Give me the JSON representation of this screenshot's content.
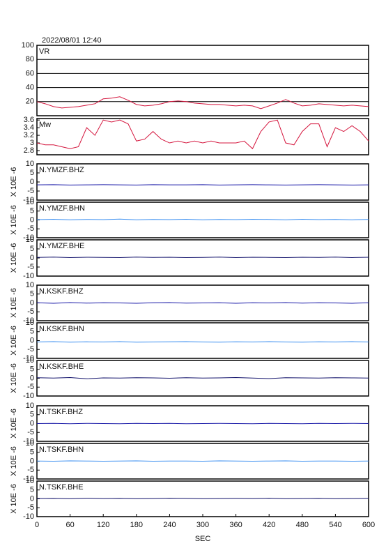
{
  "chart_data": [
    {
      "type": "line",
      "title": "2022/08/01 12:40",
      "label": "VR",
      "color": "#d4143c",
      "grid": true,
      "xlim": [
        0,
        600
      ],
      "ylim": [
        0,
        100
      ],
      "yticks": [
        20,
        40,
        60,
        80,
        100
      ],
      "x": [
        0,
        15,
        30,
        45,
        60,
        75,
        90,
        105,
        120,
        135,
        150,
        165,
        180,
        195,
        210,
        225,
        240,
        255,
        270,
        285,
        300,
        315,
        330,
        345,
        360,
        375,
        390,
        405,
        420,
        435,
        450,
        465,
        480,
        495,
        510,
        525,
        540,
        555,
        570,
        585,
        600
      ],
      "values": [
        20,
        17,
        13,
        11,
        12,
        13,
        15,
        17,
        24,
        25,
        27,
        22,
        16,
        14,
        15,
        17,
        20,
        21,
        20,
        18,
        17,
        16,
        16,
        15,
        14,
        15,
        14,
        10,
        14,
        18,
        23,
        18,
        14,
        15,
        17,
        16,
        15,
        14,
        15,
        14,
        13
      ]
    },
    {
      "type": "line",
      "label": "Mw",
      "color": "#d4143c",
      "grid": false,
      "xlim": [
        0,
        600
      ],
      "ylim": [
        2.69,
        3.64
      ],
      "yticks": [
        2.8,
        3.0,
        3.2,
        3.4,
        3.6
      ],
      "x": [
        0,
        15,
        30,
        45,
        60,
        75,
        90,
        105,
        120,
        135,
        150,
        165,
        180,
        195,
        210,
        225,
        240,
        255,
        270,
        285,
        300,
        315,
        330,
        345,
        360,
        375,
        390,
        405,
        420,
        435,
        450,
        465,
        480,
        495,
        510,
        525,
        540,
        555,
        570,
        585,
        600
      ],
      "values": [
        3.0,
        2.95,
        2.95,
        2.9,
        2.85,
        2.9,
        3.4,
        3.2,
        3.6,
        3.55,
        3.6,
        3.5,
        3.05,
        3.1,
        3.3,
        3.1,
        3.0,
        3.05,
        3.0,
        3.05,
        3.0,
        3.05,
        3.0,
        3.0,
        3.0,
        3.05,
        2.85,
        3.3,
        3.55,
        3.6,
        3.0,
        2.95,
        3.3,
        3.5,
        3.5,
        2.9,
        3.4,
        3.3,
        3.45,
        3.3,
        3.05
      ]
    },
    {
      "type": "line",
      "label": "N.YMZF.BHZ",
      "ylabel": "X 10E -6",
      "color": "#1a1aa8",
      "xlim": [
        0,
        600
      ],
      "ylim": [
        -10,
        10
      ],
      "yticks": [
        -10,
        -5,
        0,
        5,
        10
      ],
      "x": [
        0,
        30,
        60,
        90,
        120,
        150,
        180,
        210,
        240,
        270,
        300,
        330,
        360,
        390,
        420,
        450,
        480,
        510,
        540,
        570,
        600
      ],
      "values": [
        -1.6,
        -1.5,
        -1.7,
        -1.6,
        -1.5,
        -1.6,
        -1.7,
        -1.5,
        -1.6,
        -1.6,
        -1.5,
        -1.7,
        -1.6,
        -1.5,
        -1.6,
        -1.7,
        -1.6,
        -1.5,
        -1.6,
        -1.7,
        -1.6
      ]
    },
    {
      "type": "line",
      "label": "N.YMZF.BHN",
      "ylabel": "X 10E -6",
      "color": "#3a8ef0",
      "xlim": [
        0,
        600
      ],
      "ylim": [
        -10,
        10
      ],
      "yticks": [
        -10,
        -5,
        0,
        5,
        10
      ],
      "x": [
        0,
        30,
        60,
        90,
        120,
        150,
        180,
        210,
        240,
        270,
        300,
        330,
        360,
        390,
        420,
        450,
        480,
        510,
        540,
        570,
        600
      ],
      "values": [
        0.2,
        0.4,
        0.1,
        0.3,
        0.2,
        0.5,
        0.1,
        0.3,
        0.2,
        0.4,
        0.1,
        0.3,
        0.2,
        0.4,
        0.3,
        0.1,
        0.4,
        0.2,
        0.3,
        0.1,
        0.3
      ]
    },
    {
      "type": "line",
      "label": "N.YMZF.BHE",
      "ylabel": "X 10E -6",
      "color": "#10106a",
      "xlim": [
        0,
        600
      ],
      "ylim": [
        -10,
        10
      ],
      "yticks": [
        -10,
        -5,
        0,
        5,
        10
      ],
      "x": [
        0,
        30,
        60,
        90,
        120,
        150,
        180,
        210,
        240,
        270,
        300,
        330,
        360,
        390,
        420,
        450,
        480,
        510,
        540,
        570,
        600
      ],
      "values": [
        0.3,
        0.5,
        0.2,
        0.4,
        0.3,
        0.2,
        0.5,
        0.3,
        0.4,
        0.2,
        0.3,
        0.5,
        0.2,
        0.4,
        0.3,
        0.2,
        0.4,
        0.3,
        0.5,
        0.2,
        0.4
      ]
    },
    {
      "type": "line",
      "label": "N.KSKF.BHZ",
      "ylabel": "X 10E -6",
      "color": "#1a1aa8",
      "xlim": [
        0,
        600
      ],
      "ylim": [
        -10,
        10
      ],
      "yticks": [
        -10,
        -5,
        0,
        5,
        10
      ],
      "x": [
        0,
        30,
        60,
        90,
        120,
        150,
        180,
        210,
        240,
        270,
        300,
        330,
        360,
        390,
        420,
        450,
        480,
        510,
        540,
        570,
        600
      ],
      "values": [
        0.1,
        -0.2,
        0.2,
        -0.1,
        0.1,
        0.0,
        -0.2,
        0.1,
        0.2,
        -0.1,
        0.0,
        0.1,
        -0.2,
        0.1,
        0.0,
        0.2,
        -0.1,
        0.1,
        0.0,
        -0.2,
        0.1
      ]
    },
    {
      "type": "line",
      "label": "N.KSKF.BHN",
      "ylabel": "X 10E -6",
      "color": "#3a8ef0",
      "xlim": [
        0,
        600
      ],
      "ylim": [
        -10,
        10
      ],
      "yticks": [
        -10,
        -5,
        0,
        5,
        10
      ],
      "x": [
        0,
        30,
        60,
        90,
        120,
        150,
        180,
        210,
        240,
        270,
        300,
        330,
        360,
        390,
        420,
        450,
        480,
        510,
        540,
        570,
        600
      ],
      "values": [
        -0.8,
        -0.6,
        -0.9,
        -0.7,
        -0.8,
        -0.6,
        -0.9,
        -0.8,
        -0.7,
        -0.6,
        -0.8,
        -0.9,
        -0.7,
        -0.8,
        -0.6,
        -0.8,
        -0.9,
        -0.7,
        -0.8,
        -0.6,
        -0.8
      ]
    },
    {
      "type": "line",
      "label": "N.KSKF.BHE",
      "ylabel": "X 10E -6",
      "color": "#10106a",
      "xlim": [
        0,
        600
      ],
      "ylim": [
        -10,
        10
      ],
      "yticks": [
        -10,
        -5,
        0,
        5,
        10
      ],
      "x": [
        0,
        30,
        60,
        90,
        120,
        150,
        180,
        210,
        240,
        270,
        300,
        330,
        360,
        390,
        420,
        450,
        480,
        510,
        540,
        570,
        600
      ],
      "values": [
        0.3,
        0.1,
        0.4,
        -0.3,
        0.2,
        0.1,
        0.3,
        0.2,
        0.0,
        0.3,
        0.1,
        0.2,
        0.4,
        0.1,
        -0.2,
        0.3,
        0.2,
        0.1,
        0.3,
        0.2,
        0.1
      ]
    },
    {
      "type": "line",
      "label": "N.TSKF.BHZ",
      "ylabel": "X 10E -6",
      "color": "#1a1aa8",
      "xlim": [
        0,
        600
      ],
      "ylim": [
        -10,
        10
      ],
      "yticks": [
        -10,
        -5,
        0,
        5,
        10
      ],
      "x": [
        0,
        30,
        60,
        90,
        120,
        150,
        180,
        210,
        240,
        270,
        300,
        330,
        360,
        390,
        420,
        450,
        480,
        510,
        540,
        570,
        600
      ],
      "values": [
        0.0,
        0.1,
        -0.1,
        0.1,
        0.0,
        -0.1,
        0.1,
        0.0,
        0.1,
        -0.1,
        0.0,
        0.1,
        0.0,
        -0.1,
        0.1,
        0.0,
        -0.1,
        0.1,
        0.0,
        0.1,
        0.0
      ]
    },
    {
      "type": "line",
      "label": "N.TSKF.BHN",
      "ylabel": "X 10E -6",
      "color": "#3a8ef0",
      "xlim": [
        0,
        600
      ],
      "ylim": [
        -10,
        10
      ],
      "yticks": [
        -10,
        -5,
        0,
        5,
        10
      ],
      "x": [
        0,
        30,
        60,
        90,
        120,
        150,
        180,
        210,
        240,
        270,
        300,
        330,
        360,
        390,
        420,
        450,
        480,
        510,
        540,
        570,
        600
      ],
      "values": [
        0.1,
        0.0,
        0.2,
        0.1,
        0.0,
        0.1,
        0.2,
        0.0,
        0.1,
        0.1,
        0.0,
        0.2,
        0.1,
        0.0,
        0.1,
        0.2,
        0.0,
        0.1,
        0.1,
        0.0,
        0.1
      ]
    },
    {
      "type": "line",
      "label": "N.TSKF.BHE",
      "ylabel": "X 10E -6",
      "color": "#10106a",
      "xlim": [
        0,
        600
      ],
      "ylim": [
        -10,
        10
      ],
      "yticks": [
        -10,
        -5,
        0,
        5,
        10
      ],
      "xlabel": "SEC",
      "xticks": [
        0,
        60,
        120,
        180,
        240,
        300,
        360,
        420,
        480,
        540,
        600
      ],
      "x": [
        0,
        30,
        60,
        90,
        120,
        150,
        180,
        210,
        240,
        270,
        300,
        330,
        360,
        390,
        420,
        450,
        480,
        510,
        540,
        570,
        600
      ],
      "values": [
        0.2,
        0.3,
        0.1,
        0.4,
        0.2,
        0.3,
        0.1,
        0.2,
        0.4,
        0.3,
        0.1,
        0.2,
        0.3,
        0.2,
        0.4,
        0.1,
        0.2,
        0.3,
        0.1,
        0.2,
        0.3
      ]
    }
  ]
}
